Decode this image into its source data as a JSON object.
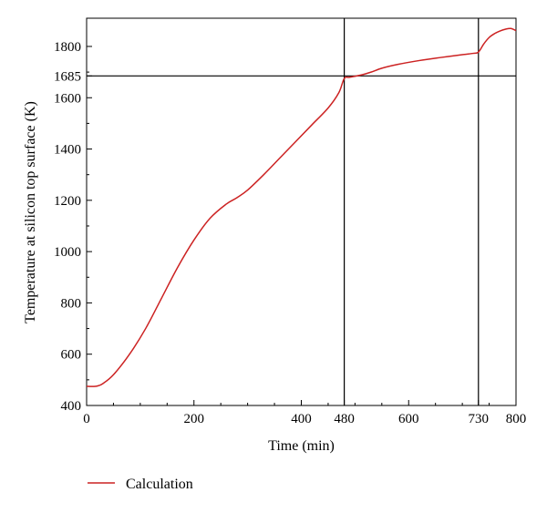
{
  "chart_data": {
    "type": "line",
    "title": "",
    "xlabel": "Time (min)",
    "ylabel": "Temperature at silicon top surface (K)",
    "xlim": [
      0,
      800
    ],
    "ylim": [
      400,
      1910
    ],
    "xticks": [
      0,
      200,
      400,
      480,
      600,
      730,
      800
    ],
    "xtick_labels": [
      "0",
      "200",
      "400",
      "480",
      "600",
      "730",
      "800"
    ],
    "yticks": [
      400,
      600,
      800,
      1000,
      1200,
      1400,
      1600,
      1685,
      1800
    ],
    "ytick_labels": [
      "400",
      "600",
      "800",
      "1000",
      "1200",
      "1400",
      "1600",
      "1685",
      "1800"
    ],
    "reference_lines": {
      "vertical": [
        480,
        730
      ],
      "horizontal": [
        1685
      ]
    },
    "grid": false,
    "legend": "bottom-left, below plot",
    "series": [
      {
        "name": "Calculation",
        "color": "#cc2222",
        "x": [
          0,
          10,
          20,
          30,
          50,
          80,
          110,
          140,
          170,
          200,
          230,
          260,
          280,
          300,
          330,
          360,
          390,
          420,
          450,
          470,
          480,
          490,
          510,
          530,
          550,
          580,
          620,
          660,
          700,
          720,
          730,
          740,
          750,
          760,
          770,
          780,
          790,
          800
        ],
        "y": [
          475,
          474,
          476,
          485,
          520,
          600,
          700,
          820,
          940,
          1045,
          1130,
          1185,
          1210,
          1240,
          1300,
          1365,
          1430,
          1495,
          1560,
          1620,
          1675,
          1680,
          1688,
          1700,
          1715,
          1730,
          1745,
          1757,
          1768,
          1773,
          1778,
          1810,
          1835,
          1850,
          1860,
          1867,
          1870,
          1862
        ]
      }
    ]
  }
}
